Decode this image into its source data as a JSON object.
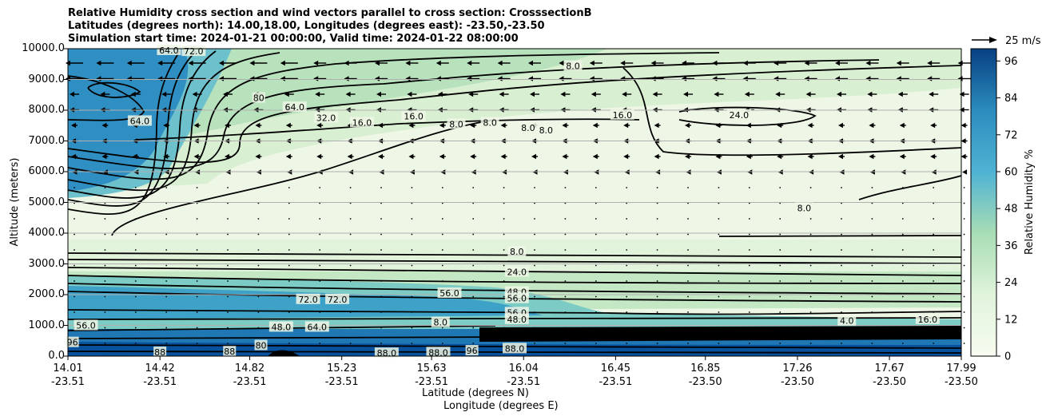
{
  "chart_data": {
    "type": "heatmap",
    "title_lines": [
      "Relative Humidity cross section and wind vectors parallel to cross section: CrosssectionB",
      "Latitudes (degrees north): 14.00,18.00, Longitudes (degrees east): -23.50,-23.50",
      "Simulation start time: 2024-01-21 00:00:00, Valid time: 2024-01-22 08:00:00"
    ],
    "ylabel": "Altitude (meters)",
    "xlabel_lat": "Latitude (degrees N)",
    "xlabel_lon": "Longitude (degrees E)",
    "y_ticks": [
      "0.0",
      "1000.0",
      "2000.0",
      "3000.0",
      "4000.0",
      "5000.0",
      "6000.0",
      "7000.0",
      "8000.0",
      "9000.0",
      "10000.0"
    ],
    "ylim": [
      0,
      10000
    ],
    "x_ticks": [
      {
        "lat": "14.01",
        "lon": "-23.51"
      },
      {
        "lat": "14.42",
        "lon": "-23.51"
      },
      {
        "lat": "14.82",
        "lon": "-23.51"
      },
      {
        "lat": "15.23",
        "lon": "-23.51"
      },
      {
        "lat": "15.63",
        "lon": "-23.51"
      },
      {
        "lat": "16.04",
        "lon": "-23.51"
      },
      {
        "lat": "16.45",
        "lon": "-23.51"
      },
      {
        "lat": "16.85",
        "lon": "-23.50"
      },
      {
        "lat": "17.26",
        "lon": "-23.50"
      },
      {
        "lat": "17.67",
        "lon": "-23.50"
      },
      {
        "lat": "17.99",
        "lon": "-23.50"
      }
    ],
    "xlim": [
      14.01,
      17.99
    ],
    "colorbar_label": "Relative Humidity %",
    "colorbar_ticks": [
      "0",
      "12",
      "24",
      "36",
      "48",
      "60",
      "72",
      "84",
      "96"
    ],
    "colorbar_range": [
      0,
      100
    ],
    "quiver_key_label": "25 m/s",
    "grid": "horizontal",
    "contour_labels": [
      {
        "text": "64.0",
        "lat": 14.46,
        "alt": 9950
      },
      {
        "text": "72.0",
        "lat": 14.57,
        "alt": 9920
      },
      {
        "text": "80",
        "lat": 14.86,
        "alt": 8400
      },
      {
        "text": "64.0",
        "lat": 15.02,
        "alt": 8100
      },
      {
        "text": "64.0",
        "lat": 14.33,
        "alt": 7650
      },
      {
        "text": "32.0",
        "lat": 15.16,
        "alt": 7750
      },
      {
        "text": "16.0",
        "lat": 15.32,
        "alt": 7600
      },
      {
        "text": "16.0",
        "lat": 15.55,
        "alt": 7800
      },
      {
        "text": "8.0",
        "lat": 15.74,
        "alt": 7550
      },
      {
        "text": "8.0",
        "lat": 15.89,
        "alt": 7600
      },
      {
        "text": "8.0",
        "lat": 16.06,
        "alt": 7430
      },
      {
        "text": "8.0",
        "lat": 16.14,
        "alt": 7350
      },
      {
        "text": "8.0",
        "lat": 16.26,
        "alt": 9440
      },
      {
        "text": "16.0",
        "lat": 16.48,
        "alt": 7850
      },
      {
        "text": "24.0",
        "lat": 17.0,
        "alt": 7850
      },
      {
        "text": "8.0",
        "lat": 17.29,
        "alt": 4820
      },
      {
        "text": "8.0",
        "lat": 16.01,
        "alt": 3400
      },
      {
        "text": "24.0",
        "lat": 16.01,
        "alt": 2740
      },
      {
        "text": "56.0",
        "lat": 15.71,
        "alt": 2050
      },
      {
        "text": "48.0",
        "lat": 16.01,
        "alt": 2090
      },
      {
        "text": "56.0",
        "lat": 16.01,
        "alt": 1880
      },
      {
        "text": "72.0",
        "lat": 15.08,
        "alt": 1850
      },
      {
        "text": "72.0",
        "lat": 15.21,
        "alt": 1850
      },
      {
        "text": "56.0",
        "lat": 16.01,
        "alt": 1420
      },
      {
        "text": "48.0",
        "lat": 16.01,
        "alt": 1200
      },
      {
        "text": "56.0",
        "lat": 14.09,
        "alt": 1000
      },
      {
        "text": "48.0",
        "lat": 14.96,
        "alt": 950
      },
      {
        "text": "64.0",
        "lat": 15.12,
        "alt": 950
      },
      {
        "text": "8.0",
        "lat": 15.67,
        "alt": 1100
      },
      {
        "text": "4.0",
        "lat": 17.48,
        "alt": 1150
      },
      {
        "text": "16.0",
        "lat": 17.84,
        "alt": 1200
      },
      {
        "text": "88",
        "lat": 14.42,
        "alt": 130
      },
      {
        "text": "88",
        "lat": 14.73,
        "alt": 150
      },
      {
        "text": "80",
        "lat": 14.87,
        "alt": 350
      },
      {
        "text": "88.0",
        "lat": 15.43,
        "alt": 100
      },
      {
        "text": "88.0",
        "lat": 15.66,
        "alt": 120
      },
      {
        "text": "88.0",
        "lat": 16.0,
        "alt": 250
      },
      {
        "text": "96",
        "lat": 15.81,
        "alt": 180
      },
      {
        "text": "96",
        "lat": 14.03,
        "alt": 450
      }
    ]
  }
}
